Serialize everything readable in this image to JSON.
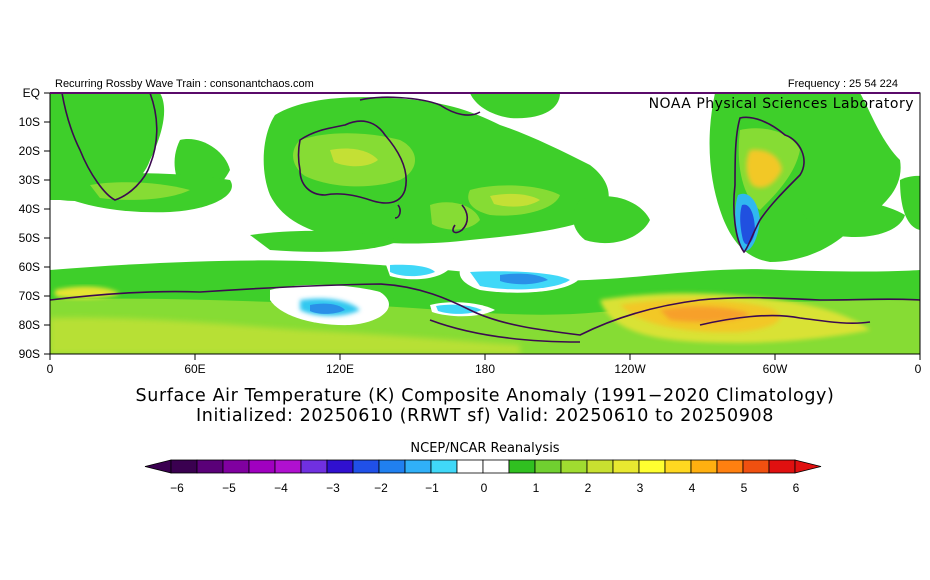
{
  "header": {
    "left_text": "Recurring Rossby Wave Train : consonantchaos.com",
    "right_text": "Frequency : 25 54 224",
    "agency": "NOAA Physical Sciences Laboratory"
  },
  "map": {
    "lat_labels": [
      "EQ",
      "10S",
      "20S",
      "30S",
      "40S",
      "50S",
      "60S",
      "70S",
      "80S",
      "90S"
    ],
    "lon_labels": [
      "0",
      "60E",
      "120E",
      "180",
      "120W",
      "60W",
      "0"
    ]
  },
  "title": {
    "line1": "Surface Air Temperature (K) Composite Anomaly (1991−2020 Climatology)",
    "line2": "Initialized: 20250610 (RRWT sf) Valid: 20250610 to 20250908"
  },
  "colorbar": {
    "title": "NCEP/NCAR Reanalysis",
    "tick_labels": [
      "−6",
      "−5",
      "−4",
      "−3",
      "−2",
      "−1",
      "0",
      "1",
      "2",
      "3",
      "4",
      "5",
      "6"
    ],
    "colors": [
      "#3a0050",
      "#5a0078",
      "#8000a0",
      "#a000c0",
      "#b010d0",
      "#7030e0",
      "#3010d0",
      "#2050e8",
      "#2080f0",
      "#30b0f8",
      "#40d8f8",
      "#ffffff",
      "#ffffff",
      "#30c020",
      "#70d030",
      "#a0dc30",
      "#c8e030",
      "#e8e830",
      "#ffff30",
      "#ffd820",
      "#ffb010",
      "#ff8010",
      "#f05010",
      "#e01010"
    ]
  }
}
